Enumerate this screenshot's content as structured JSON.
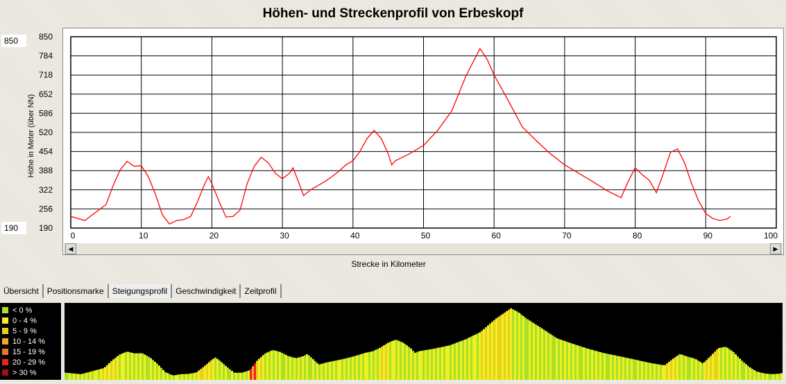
{
  "title": "Höhen- und Streckenprofil von Erbeskopf",
  "range_max": "850",
  "range_min": "190",
  "tabs": [
    "Übersicht",
    "Positionsmarke",
    "Steigungsprofil",
    "Geschwindigkeit",
    "Zeitprofil"
  ],
  "legend": [
    {
      "label": "< 0 %",
      "color": "#a8e02a"
    },
    {
      "label": "0 - 4 %",
      "color": "#f0f020"
    },
    {
      "label": "5 - 9 %",
      "color": "#e8d020"
    },
    {
      "label": "10 - 14 %",
      "color": "#f0a830"
    },
    {
      "label": "15 - 19 %",
      "color": "#e87830"
    },
    {
      "label": "20 - 29 %",
      "color": "#f02020"
    },
    {
      "label": "> 30 %",
      "color": "#a01010"
    }
  ],
  "chart_data": {
    "type": "line",
    "title": "Höhen- und Streckenprofil von Erbeskopf",
    "xlabel": "Strecke in Kilometer",
    "ylabel": "Höhe in Meter (über NN)",
    "xlim": [
      0,
      100
    ],
    "ylim": [
      190,
      850
    ],
    "xticks": [
      0,
      10,
      20,
      30,
      40,
      50,
      60,
      70,
      80,
      90,
      100
    ],
    "yticks": [
      190,
      256,
      322,
      388,
      454,
      520,
      586,
      652,
      718,
      784,
      850
    ],
    "grid": true,
    "line_color": "#ff0000",
    "x": [
      0,
      2,
      5,
      6,
      7,
      8,
      9,
      10,
      11,
      12,
      13,
      14,
      15,
      16,
      17,
      18,
      19,
      19.5,
      20,
      21,
      22,
      23,
      24,
      25,
      26,
      27,
      28,
      29,
      30,
      31,
      31.5,
      32,
      33,
      34,
      35,
      36,
      37,
      38,
      39,
      40,
      41,
      42,
      43,
      44,
      45,
      45.5,
      46,
      48,
      50,
      52,
      54,
      56,
      58,
      59,
      60,
      62,
      64,
      66,
      68,
      70,
      72,
      74,
      76,
      78,
      79,
      80,
      81,
      82,
      83,
      84,
      85,
      86,
      87,
      88,
      89,
      90,
      91,
      92,
      93,
      93.5
    ],
    "y": [
      230,
      216,
      271,
      336,
      391,
      420,
      403,
      405,
      367,
      307,
      235,
      204,
      216,
      219,
      230,
      283,
      343,
      367,
      343,
      283,
      228,
      230,
      252,
      343,
      403,
      434,
      415,
      379,
      360,
      379,
      398,
      367,
      302,
      322,
      336,
      350,
      367,
      386,
      408,
      422,
      455,
      499,
      527,
      499,
      446,
      408,
      422,
      446,
      475,
      527,
      594,
      714,
      809,
      773,
      718,
      630,
      539,
      491,
      446,
      408,
      379,
      350,
      319,
      295,
      350,
      398,
      374,
      355,
      312,
      379,
      451,
      463,
      415,
      343,
      283,
      240,
      223,
      216,
      221,
      230
    ]
  }
}
